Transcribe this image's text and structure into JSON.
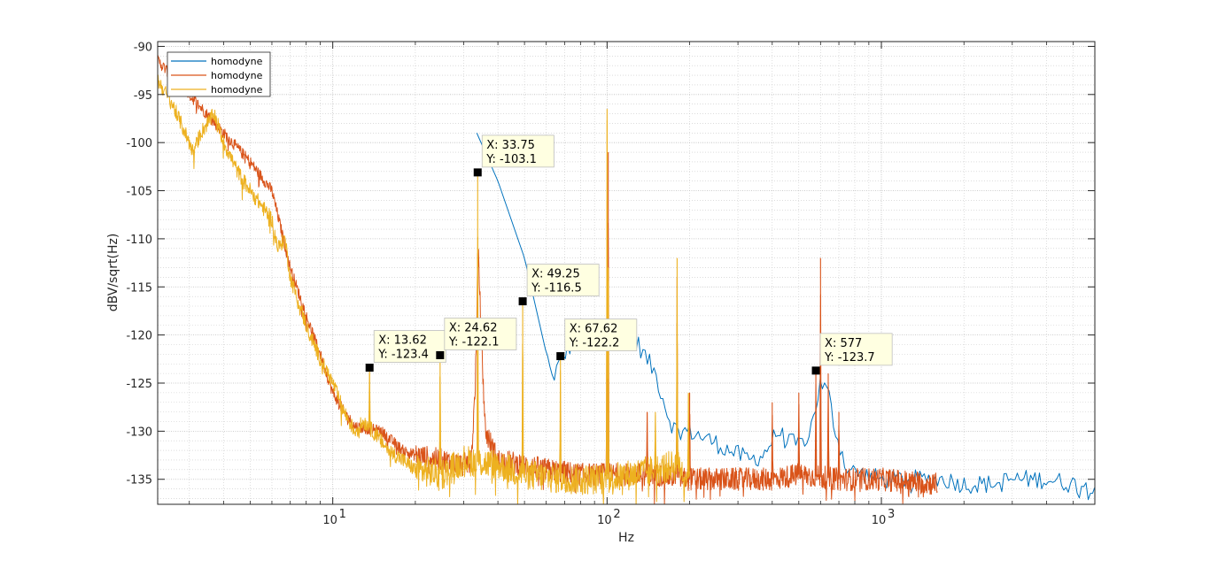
{
  "chart_data": {
    "type": "line",
    "title": "",
    "xlabel": "Hz",
    "ylabel": "dBV/sqrt(Hz)",
    "x_scale": "log",
    "xlim": [
      2.3,
      6000
    ],
    "ylim": [
      -137.6,
      -89.5
    ],
    "grid": true,
    "minor_grid": true,
    "x_ticks": [
      {
        "value": 10,
        "base": "10",
        "exp": "1"
      },
      {
        "value": 100,
        "base": "10",
        "exp": "2"
      },
      {
        "value": 1000,
        "base": "10",
        "exp": "3"
      }
    ],
    "y_ticks": [
      -90,
      -95,
      -100,
      -105,
      -110,
      -115,
      -120,
      -125,
      -130,
      -135
    ],
    "legend": {
      "position": "top-left"
    },
    "colors": {
      "series1": "#0072BD",
      "series2": "#D95319",
      "series3": "#EDB120"
    },
    "series": [
      {
        "name": "homodyne",
        "color": "#0072BD",
        "points": [
          [
            33.5,
            -99
          ],
          [
            40,
            -104
          ],
          [
            50,
            -112
          ],
          [
            63,
            -124.5
          ],
          [
            70,
            -122
          ],
          [
            78,
            -120
          ],
          [
            90,
            -120
          ],
          [
            110,
            -120
          ],
          [
            130,
            -121
          ],
          [
            150,
            -124
          ],
          [
            170,
            -129
          ],
          [
            180,
            -130
          ],
          [
            200,
            -130
          ],
          [
            240,
            -131
          ],
          [
            280,
            -132
          ],
          [
            330,
            -133
          ],
          [
            370,
            -132.5
          ],
          [
            420,
            -130
          ],
          [
            450,
            -131
          ],
          [
            500,
            -131.5
          ],
          [
            550,
            -130
          ],
          [
            600,
            -125
          ],
          [
            640,
            -126
          ],
          [
            680,
            -130
          ],
          [
            750,
            -134
          ],
          [
            1000,
            -135
          ],
          [
            1500,
            -135
          ],
          [
            1700,
            -135
          ],
          [
            2000,
            -135.5
          ],
          [
            2500,
            -135.5
          ],
          [
            3000,
            -135
          ],
          [
            3500,
            -135
          ],
          [
            4000,
            -135
          ],
          [
            5000,
            -135.5
          ],
          [
            6000,
            -135.5
          ]
        ],
        "noise": 1.0
      },
      {
        "name": "homodyne",
        "color": "#D95319",
        "points": [
          [
            2.3,
            -91.5
          ],
          [
            3,
            -95
          ],
          [
            4,
            -99
          ],
          [
            5,
            -102
          ],
          [
            6,
            -105
          ],
          [
            7,
            -113
          ],
          [
            8,
            -118
          ],
          [
            9,
            -122
          ],
          [
            10,
            -126
          ],
          [
            11,
            -128
          ],
          [
            12,
            -129.5
          ],
          [
            15,
            -130
          ],
          [
            18,
            -132
          ],
          [
            20,
            -132.5
          ],
          [
            25,
            -133
          ],
          [
            30,
            -133.5
          ],
          [
            32,
            -133
          ],
          [
            33,
            -126
          ],
          [
            34,
            -112
          ],
          [
            35,
            -122
          ],
          [
            36,
            -130
          ],
          [
            40,
            -133
          ],
          [
            50,
            -133.5
          ],
          [
            60,
            -134
          ],
          [
            80,
            -134.5
          ],
          [
            100,
            -134.5
          ],
          [
            150,
            -134.5
          ],
          [
            200,
            -135
          ],
          [
            300,
            -135
          ],
          [
            400,
            -135
          ],
          [
            500,
            -134.5
          ],
          [
            700,
            -135
          ],
          [
            1000,
            -135
          ],
          [
            1600,
            -135.5
          ]
        ],
        "noise": 1.2,
        "spikes": [
          [
            33.75,
            -111.5
          ],
          [
            100,
            -106
          ],
          [
            101,
            -101
          ],
          [
            140,
            -128
          ],
          [
            180,
            -114
          ],
          [
            200,
            -126
          ],
          [
            400,
            -127
          ],
          [
            500,
            -126
          ],
          [
            577,
            -123.7
          ],
          [
            600,
            -112
          ],
          [
            640,
            -124
          ],
          [
            700,
            -128
          ]
        ]
      },
      {
        "name": "homodyne",
        "color": "#EDB120",
        "points": [
          [
            2.3,
            -93.5
          ],
          [
            2.6,
            -96
          ],
          [
            2.9,
            -99
          ],
          [
            3.1,
            -101
          ],
          [
            3.3,
            -99
          ],
          [
            3.7,
            -97
          ],
          [
            4,
            -100
          ],
          [
            4.5,
            -103
          ],
          [
            5,
            -105
          ],
          [
            6,
            -108
          ],
          [
            6.3,
            -111
          ],
          [
            6.7,
            -110
          ],
          [
            7,
            -114
          ],
          [
            8,
            -119
          ],
          [
            9,
            -122.5
          ],
          [
            10,
            -125
          ],
          [
            11,
            -128
          ],
          [
            12,
            -130
          ],
          [
            13,
            -129
          ],
          [
            14,
            -130
          ],
          [
            16,
            -132
          ],
          [
            18,
            -133
          ],
          [
            20,
            -134
          ],
          [
            25,
            -134.5
          ],
          [
            30,
            -133
          ],
          [
            40,
            -133.5
          ],
          [
            50,
            -134.5
          ],
          [
            70,
            -135
          ],
          [
            100,
            -135
          ],
          [
            150,
            -134
          ],
          [
            180,
            -133.5
          ],
          [
            200,
            -135
          ]
        ],
        "noise": 1.6,
        "spikes": [
          [
            13.62,
            -123.4
          ],
          [
            24.62,
            -122.1
          ],
          [
            33.75,
            -103.1
          ],
          [
            49.25,
            -116.5
          ],
          [
            67.62,
            -122.2
          ],
          [
            100,
            -96.5
          ],
          [
            101,
            -113
          ],
          [
            150,
            -128
          ],
          [
            180,
            -112
          ],
          [
            198,
            -126
          ]
        ]
      }
    ],
    "datatips": [
      {
        "x": 33.75,
        "y": -103.1,
        "label_x": "X: 33.75",
        "label_y": "Y: -103.1"
      },
      {
        "x": 49.25,
        "y": -116.5,
        "label_x": "X: 49.25",
        "label_y": "Y: -116.5"
      },
      {
        "x": 13.62,
        "y": -123.4,
        "label_x": "X: 13.62",
        "label_y": "Y: -123.4"
      },
      {
        "x": 24.62,
        "y": -122.1,
        "label_x": "X: 24.62",
        "label_y": "Y: -122.1"
      },
      {
        "x": 67.62,
        "y": -122.2,
        "label_x": "X: 67.62",
        "label_y": "Y: -122.2"
      },
      {
        "x": 577,
        "y": -123.7,
        "label_x": "X: 577",
        "label_y": "Y: -123.7"
      }
    ]
  }
}
